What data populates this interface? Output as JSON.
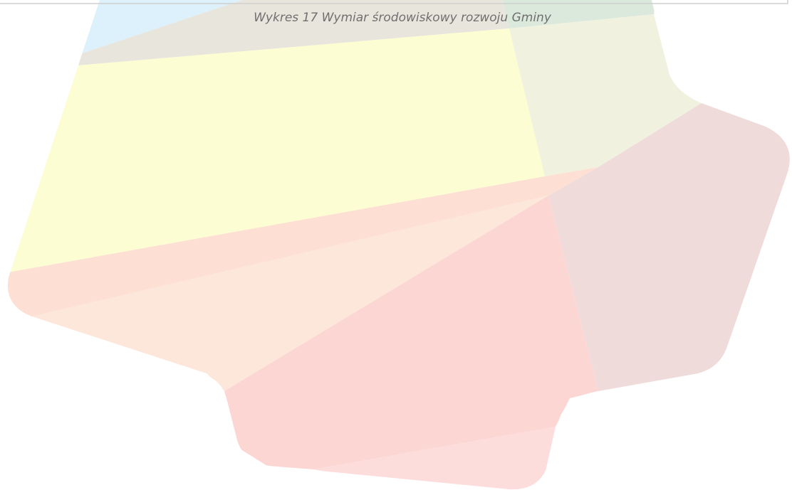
{
  "caption": "Wykres 17 Wymiar środowiskowy rozwoju Gminy"
}
